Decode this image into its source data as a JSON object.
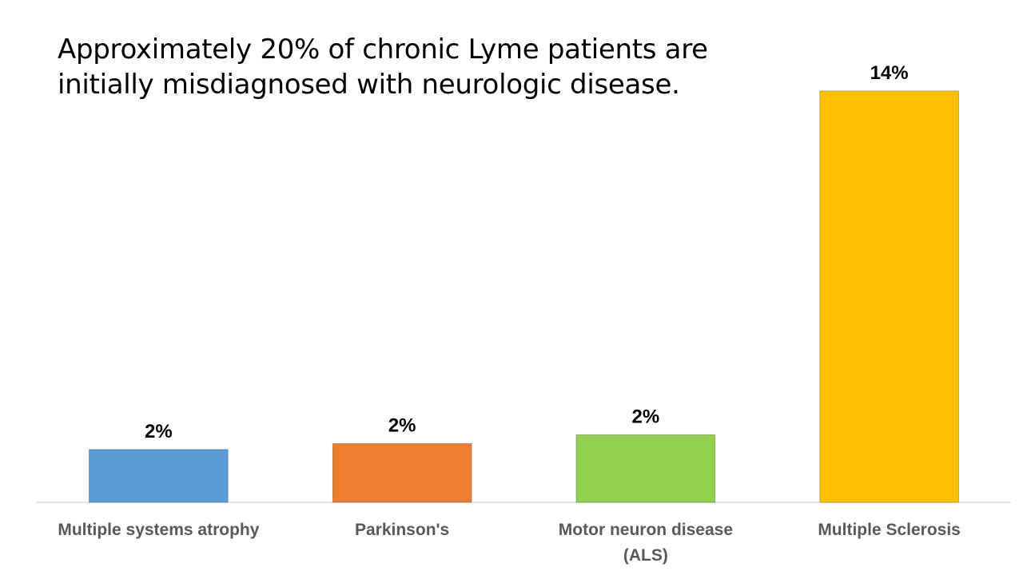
{
  "chart_data": {
    "type": "bar",
    "title": "Approximately 20% of chronic Lyme patients are initially misdiagnosed with neurologic disease.",
    "categories": [
      [
        "Multiple systems atrophy"
      ],
      [
        "Parkinson's"
      ],
      [
        "Motor neuron disease",
        "(ALS)"
      ],
      [
        "Multiple Sclerosis"
      ]
    ],
    "values": [
      1.8,
      2.0,
      2.3,
      14.0
    ],
    "data_labels": [
      "2%",
      "2%",
      "2%",
      "14%"
    ],
    "colors": [
      "#5B9BD5",
      "#ED7D31",
      "#92D050",
      "#FFC000"
    ],
    "ylim": [
      0,
      15.9
    ],
    "xlabel": "",
    "ylabel": "",
    "grid": false,
    "legend": false
  }
}
